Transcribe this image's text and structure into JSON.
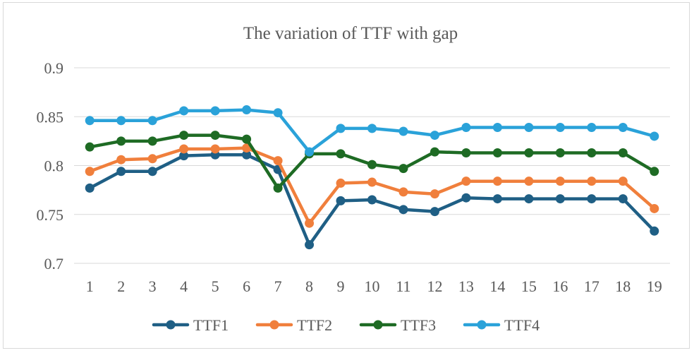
{
  "chart_data": {
    "type": "line",
    "title": "The variation of TTF with gap",
    "xlabel": "",
    "ylabel": "",
    "categories": [
      "1",
      "2",
      "3",
      "4",
      "5",
      "6",
      "7",
      "8",
      "9",
      "10",
      "11",
      "12",
      "13",
      "14",
      "15",
      "16",
      "17",
      "18",
      "19"
    ],
    "ylim": [
      0.7,
      0.9
    ],
    "yticks": [
      "0.7",
      "0.75",
      "0.8",
      "0.85",
      "0.9"
    ],
    "grid": true,
    "legend_position": "bottom",
    "series": [
      {
        "name": "TTF1",
        "color": "#1f5f85",
        "values": [
          0.777,
          0.794,
          0.794,
          0.81,
          0.811,
          0.811,
          0.796,
          0.719,
          0.764,
          0.765,
          0.755,
          0.753,
          0.767,
          0.766,
          0.766,
          0.766,
          0.766,
          0.766,
          0.733
        ]
      },
      {
        "name": "TTF2",
        "color": "#f07f3c",
        "values": [
          0.794,
          0.806,
          0.807,
          0.817,
          0.817,
          0.818,
          0.805,
          0.741,
          0.782,
          0.783,
          0.773,
          0.771,
          0.784,
          0.784,
          0.784,
          0.784,
          0.784,
          0.784,
          0.756
        ]
      },
      {
        "name": "TTF3",
        "color": "#1e6b24",
        "values": [
          0.819,
          0.825,
          0.825,
          0.831,
          0.831,
          0.827,
          0.777,
          0.812,
          0.812,
          0.801,
          0.797,
          0.814,
          0.813,
          0.813,
          0.813,
          0.813,
          0.813,
          0.813,
          0.794
        ]
      },
      {
        "name": "TTF4",
        "color": "#2aa2d9",
        "values": [
          0.846,
          0.846,
          0.846,
          0.856,
          0.856,
          0.857,
          0.854,
          0.814,
          0.838,
          0.838,
          0.835,
          0.831,
          0.839,
          0.839,
          0.839,
          0.839,
          0.839,
          0.839,
          0.83
        ]
      }
    ]
  }
}
